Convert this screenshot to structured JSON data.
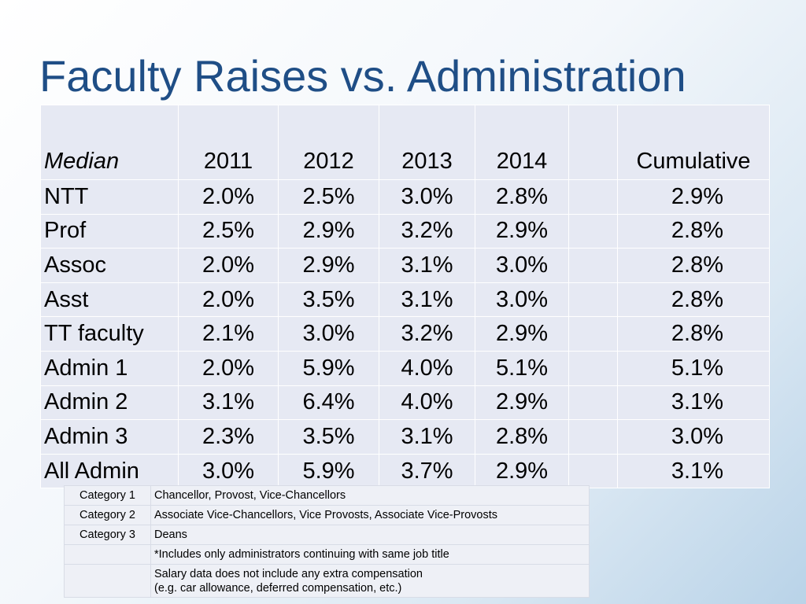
{
  "slide": {
    "title": "Faculty Raises vs. Administration"
  },
  "table": {
    "corner_label": "Median",
    "headers": [
      "2011",
      "2012",
      "2013",
      "2014",
      "",
      "Cumulative"
    ],
    "rows": [
      {
        "label": "NTT",
        "values": [
          "2.0%",
          "2.5%",
          "3.0%",
          "2.8%",
          "",
          "2.9%"
        ]
      },
      {
        "label": "Prof",
        "values": [
          "2.5%",
          "2.9%",
          "3.2%",
          "2.9%",
          "",
          "2.8%"
        ]
      },
      {
        "label": "Assoc",
        "values": [
          "2.0%",
          "2.9%",
          "3.1%",
          "3.0%",
          "",
          "2.8%"
        ]
      },
      {
        "label": "Asst",
        "values": [
          "2.0%",
          "3.5%",
          "3.1%",
          "3.0%",
          "",
          "2.8%"
        ]
      },
      {
        "label": "TT faculty",
        "values": [
          "2.1%",
          "3.0%",
          "3.2%",
          "2.9%",
          "",
          "2.8%"
        ]
      },
      {
        "label": "Admin 1",
        "values": [
          "2.0%",
          "5.9%",
          "4.0%",
          "5.1%",
          "",
          "5.1%"
        ]
      },
      {
        "label": "Admin 2",
        "values": [
          "3.1%",
          "6.4%",
          "4.0%",
          "2.9%",
          "",
          "3.1%"
        ]
      },
      {
        "label": "Admin 3",
        "values": [
          "2.3%",
          "3.5%",
          "3.1%",
          "2.8%",
          "",
          "3.0%"
        ]
      },
      {
        "label": "All Admin",
        "values": [
          "3.0%",
          "5.9%",
          "3.7%",
          "2.9%",
          "",
          "3.1%"
        ]
      }
    ]
  },
  "notes": {
    "rows": [
      {
        "category": "Category 1",
        "description": "Chancellor, Provost, Vice-Chancellors"
      },
      {
        "category": "Category 2",
        "description": "Associate Vice-Chancellors, Vice Provosts, Associate Vice-Provosts"
      },
      {
        "category": "Category 3",
        "description": "Deans"
      },
      {
        "category": "",
        "description": "*Includes only administrators continuing  with same job title"
      }
    ],
    "footnote_line1": "Salary data does not include any extra compensation",
    "footnote_line2": "(e.g. car allowance, deferred compensation, etc.)"
  }
}
